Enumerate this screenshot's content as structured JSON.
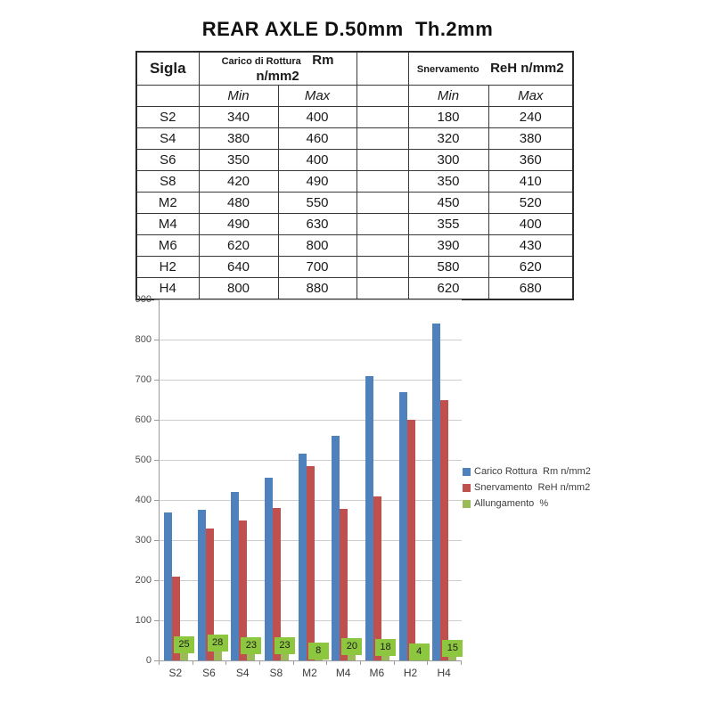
{
  "title": "REAR AXLE D.50mm  Th.2mm",
  "table": {
    "header": {
      "sigla": "Sigla",
      "group1_small": "Carico di Rottura",
      "group1_big": "Rm n/mm2",
      "group2_small": "Snervamento",
      "group2_big": "ReH n/mm2",
      "min": "Min",
      "max": "Max"
    },
    "rows": [
      {
        "sigla": "S2",
        "rm_min": "340",
        "rm_max": "400",
        "reh_min": "180",
        "reh_max": "240"
      },
      {
        "sigla": "S4",
        "rm_min": "380",
        "rm_max": "460",
        "reh_min": "320",
        "reh_max": "380"
      },
      {
        "sigla": "S6",
        "rm_min": "350",
        "rm_max": "400",
        "reh_min": "300",
        "reh_max": "360"
      },
      {
        "sigla": "S8",
        "rm_min": "420",
        "rm_max": "490",
        "reh_min": "350",
        "reh_max": "410"
      },
      {
        "sigla": "M2",
        "rm_min": "480",
        "rm_max": "550",
        "reh_min": "450",
        "reh_max": "520"
      },
      {
        "sigla": "M4",
        "rm_min": "490",
        "rm_max": "630",
        "reh_min": "355",
        "reh_max": "400"
      },
      {
        "sigla": "M6",
        "rm_min": "620",
        "rm_max": "800",
        "reh_min": "390",
        "reh_max": "430"
      },
      {
        "sigla": "H2",
        "rm_min": "640",
        "rm_max": "700",
        "reh_min": "580",
        "reh_max": "620"
      },
      {
        "sigla": "H4",
        "rm_min": "800",
        "rm_max": "880",
        "reh_min": "620",
        "reh_max": "680"
      }
    ]
  },
  "chart_data": {
    "type": "bar",
    "categories": [
      "S2",
      "S6",
      "S4",
      "S8",
      "M2",
      "M4",
      "M6",
      "H2",
      "H4"
    ],
    "series": [
      {
        "name": "Carico Rottura  Rm n/mm2",
        "color": "#4f81bd",
        "values": [
          370,
          375,
          420,
          455,
          515,
          560,
          710,
          670,
          840
        ]
      },
      {
        "name": "Snervamento  ReH n/mm2",
        "color": "#c0504d",
        "values": [
          210,
          330,
          350,
          380,
          485,
          377.5,
          410,
          600,
          650
        ]
      },
      {
        "name": "Allungamento  %",
        "color": "#9bbb59",
        "values": [
          25,
          28,
          23,
          23,
          8,
          20,
          18,
          4,
          15
        ],
        "data_labels": true,
        "label_bg": "#8dc63f"
      }
    ],
    "title": "",
    "xlabel": "",
    "ylabel": "",
    "ylim": [
      0,
      900
    ],
    "ytick_step": 100,
    "grid": true,
    "legend_position": "right"
  }
}
